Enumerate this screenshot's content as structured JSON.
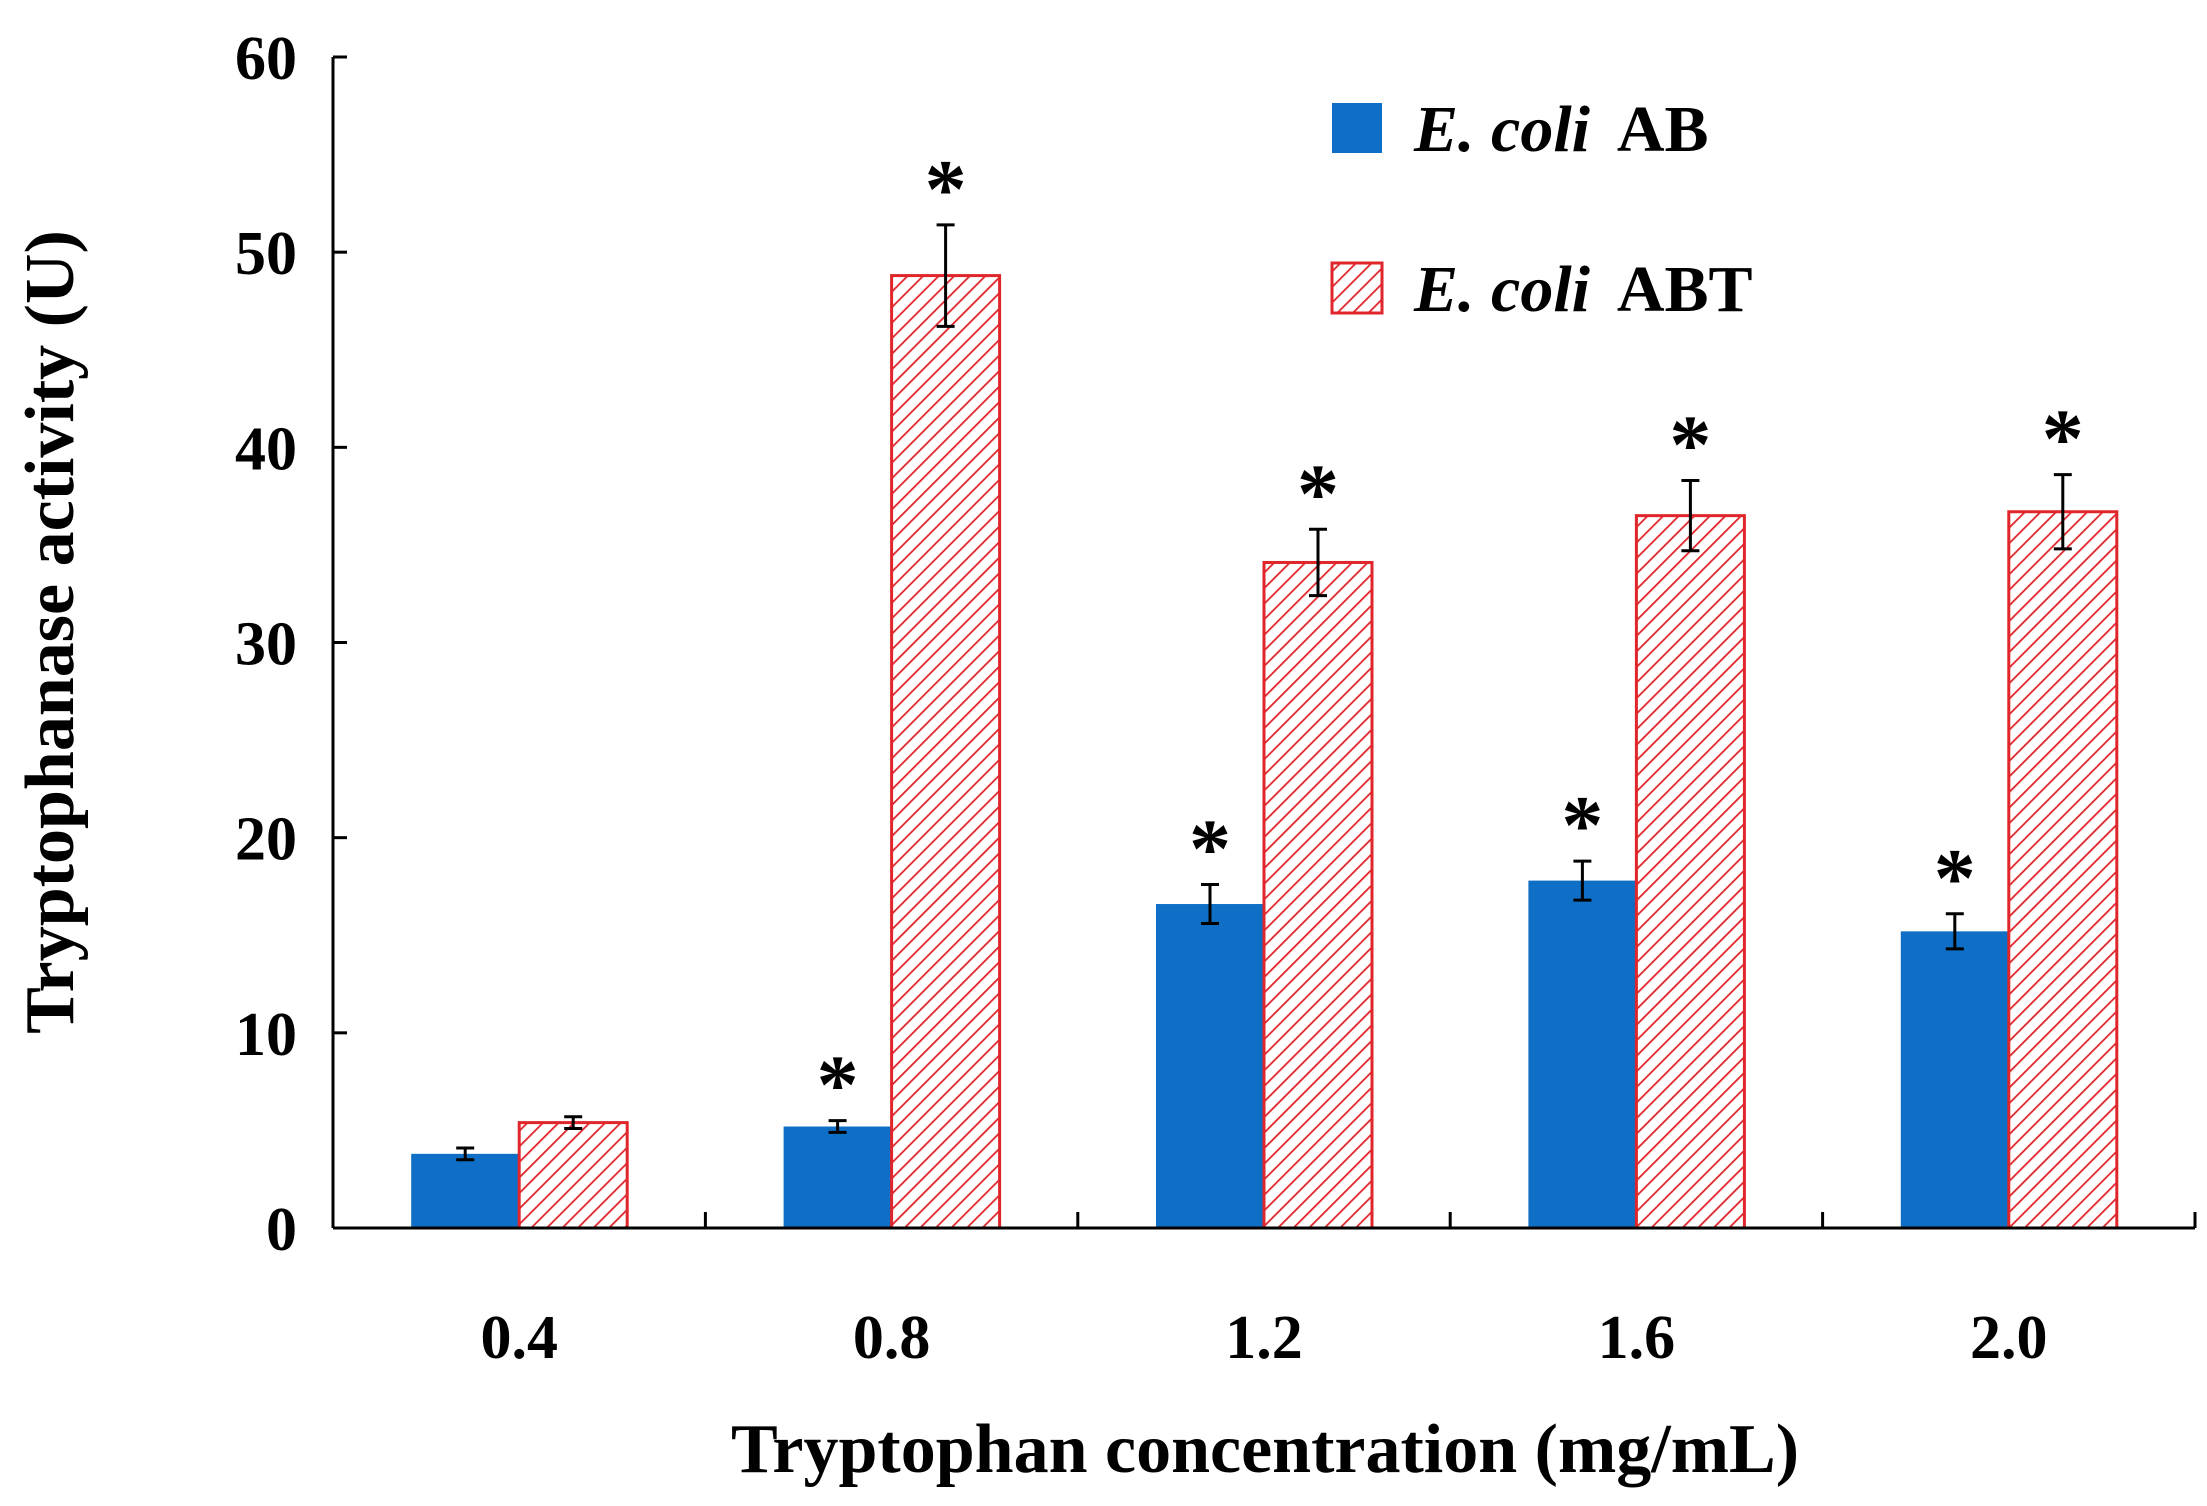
{
  "chart_data": {
    "type": "bar",
    "title": "",
    "xlabel": "Tryptophan concentration (mg/mL)",
    "ylabel": "Tryptophanase activity (U)",
    "ylim": [
      0,
      60
    ],
    "yticks": [
      0,
      10,
      20,
      30,
      40,
      50,
      60
    ],
    "categories": [
      "0.4",
      "0.8",
      "1.2",
      "1.6",
      "2.0"
    ],
    "series": [
      {
        "name": "E. coli AB",
        "name_italic": "E. coli",
        "name_suffix": "AB",
        "color": "#0f6fc6",
        "pattern": "solid",
        "values": [
          3.8,
          5.2,
          16.6,
          17.8,
          15.2
        ],
        "errors": [
          0.3,
          0.3,
          1.0,
          1.0,
          0.9
        ],
        "significant": [
          false,
          true,
          true,
          true,
          true
        ]
      },
      {
        "name": "E. coli ABT",
        "name_italic": "E. coli",
        "name_suffix": "ABT",
        "color": "#e0262b",
        "pattern": "diagonal-hatch",
        "values": [
          5.4,
          48.8,
          34.1,
          36.5,
          36.7
        ],
        "errors": [
          0.3,
          2.6,
          1.7,
          1.8,
          1.9
        ],
        "significant": [
          false,
          true,
          true,
          true,
          true
        ]
      }
    ],
    "significance_marker": "*",
    "legend_position": "top-right",
    "grid": false
  },
  "colors": {
    "axis": "#000000",
    "background": "#ffffff"
  }
}
